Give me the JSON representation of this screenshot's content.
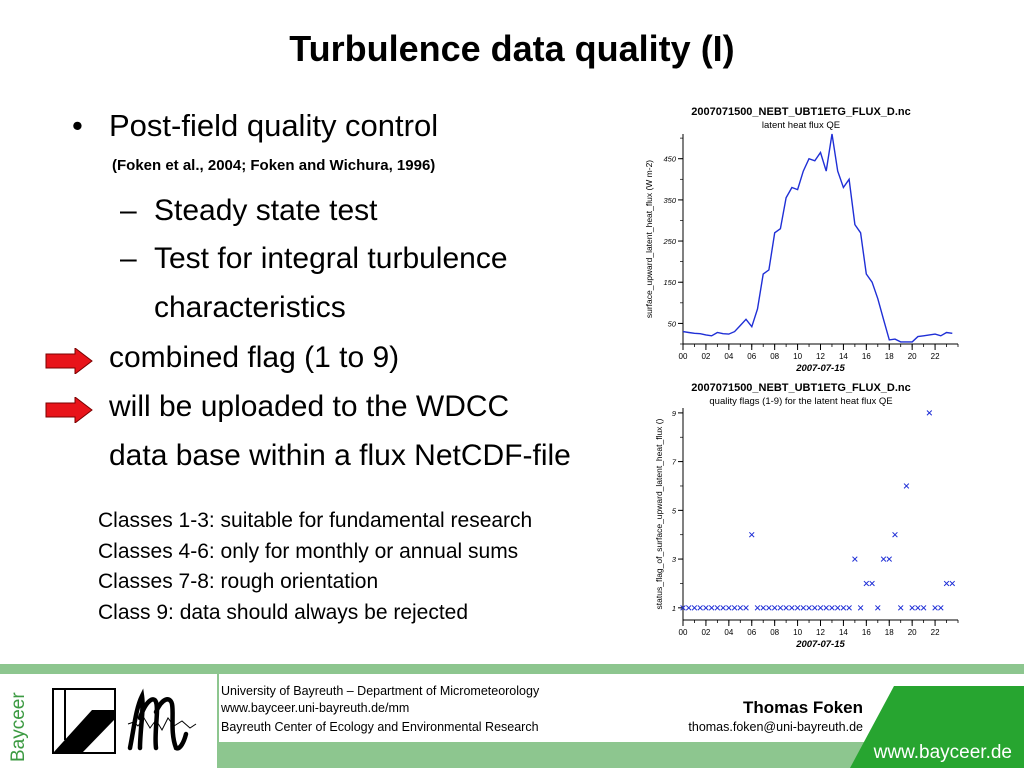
{
  "title": "Turbulence data quality (I)",
  "bullets": {
    "main": "Post-field quality control",
    "reference": "(Foken et al., 2004; Foken and Wichura, 1996)",
    "sub": [
      "Steady state test",
      "Test for integral turbulence",
      "characteristics"
    ],
    "arrow_lines": [
      "combined flag (1 to 9)",
      "will be uploaded to the WDCC"
    ],
    "continuation": "data base within a flux NetCDF-file",
    "arrow_color": "#e8141a"
  },
  "classes": [
    "Classes 1-3: suitable for fundamental research",
    "Classes 4-6: only for monthly or annual sums",
    "Classes 7-8: rough orientation",
    "Class 9: data should always be rejected"
  ],
  "chart_data": [
    {
      "type": "line",
      "title": "2007071500_NEBT_UBT1ETG_FLUX_D.nc",
      "subtitle": "latent heat flux QE",
      "ylabel": "surface_upward_latent_heat_flux (W m-2)",
      "xlabel": "2007-07-15",
      "x_ticks": [
        "00",
        "02",
        "04",
        "06",
        "08",
        "10",
        "12",
        "14",
        "16",
        "18",
        "20",
        "22"
      ],
      "y_ticks": [
        50,
        150,
        250,
        350,
        450
      ],
      "xlim": [
        0,
        24
      ],
      "ylim": [
        0,
        510
      ],
      "series": [
        {
          "color": "#1f2fd6",
          "x": [
            0,
            0.5,
            1,
            1.5,
            2,
            2.5,
            3,
            3.5,
            4,
            4.5,
            5,
            5.5,
            6,
            6.5,
            7,
            7.5,
            8,
            8.5,
            9,
            9.5,
            10,
            10.5,
            11,
            11.5,
            12,
            12.5,
            13,
            13.5,
            14,
            14.5,
            15,
            15.5,
            16,
            16.5,
            17,
            17.5,
            18,
            18.5,
            19,
            19.5,
            20,
            20.5,
            21,
            21.5,
            22,
            22.5,
            23,
            23.5
          ],
          "y": [
            30,
            28,
            26,
            25,
            22,
            20,
            28,
            25,
            24,
            30,
            45,
            60,
            42,
            85,
            170,
            180,
            270,
            280,
            355,
            380,
            375,
            420,
            450,
            445,
            465,
            420,
            510,
            420,
            380,
            400,
            290,
            270,
            170,
            150,
            110,
            60,
            10,
            12,
            5,
            5,
            5,
            18,
            20,
            22,
            24,
            20,
            28,
            26
          ]
        }
      ]
    },
    {
      "type": "scatter",
      "title": "2007071500_NEBT_UBT1ETG_FLUX_D.nc",
      "subtitle": "quality flags (1-9) for the latent heat flux QE",
      "ylabel": "status_flag_of_surface_upward_latent_heat_flux ()",
      "xlabel": "2007-07-15",
      "x_ticks": [
        "00",
        "02",
        "04",
        "06",
        "08",
        "10",
        "12",
        "14",
        "16",
        "18",
        "20",
        "22"
      ],
      "y_ticks": [
        1,
        3,
        5,
        7,
        9
      ],
      "xlim": [
        0,
        24
      ],
      "ylim": [
        0.5,
        9.2
      ],
      "marker": "x",
      "series": [
        {
          "color": "#1f2fd6",
          "x": [
            0,
            0.5,
            1,
            1.5,
            2,
            2.5,
            3,
            3.5,
            4,
            4.5,
            5,
            5.5,
            6,
            6.5,
            7,
            7.5,
            8,
            8.5,
            9,
            9.5,
            10,
            10.5,
            11,
            11.5,
            12,
            12.5,
            13,
            13.5,
            14,
            14.5,
            15,
            15.5,
            16,
            16.5,
            17,
            17.5,
            18,
            18.5,
            19,
            19.5,
            20,
            20.5,
            21,
            21.5,
            22,
            22.5,
            23,
            23.5
          ],
          "y": [
            1,
            1,
            1,
            1,
            1,
            1,
            1,
            1,
            1,
            1,
            1,
            1,
            4,
            1,
            1,
            1,
            1,
            1,
            1,
            1,
            1,
            1,
            1,
            1,
            1,
            1,
            1,
            1,
            1,
            1,
            3,
            1,
            2,
            2,
            1,
            3,
            3,
            4,
            1,
            6,
            1,
            1,
            1,
            9,
            1,
            1,
            2,
            2
          ]
        }
      ]
    }
  ],
  "footer": {
    "university": "University of Bayreuth – Department of Micrometeorology",
    "url": "www.bayceer.uni-bayreuth.de/mm",
    "center": "Bayreuth Center of Ecology and Environmental Research",
    "author": "Thomas Foken",
    "email": "thomas.foken@uni-bayreuth.de",
    "banner_url": "www.bayceer.de",
    "logo_text": "Bayceer",
    "accent_color": "#8dc68f",
    "banner_color": "#27a530"
  }
}
